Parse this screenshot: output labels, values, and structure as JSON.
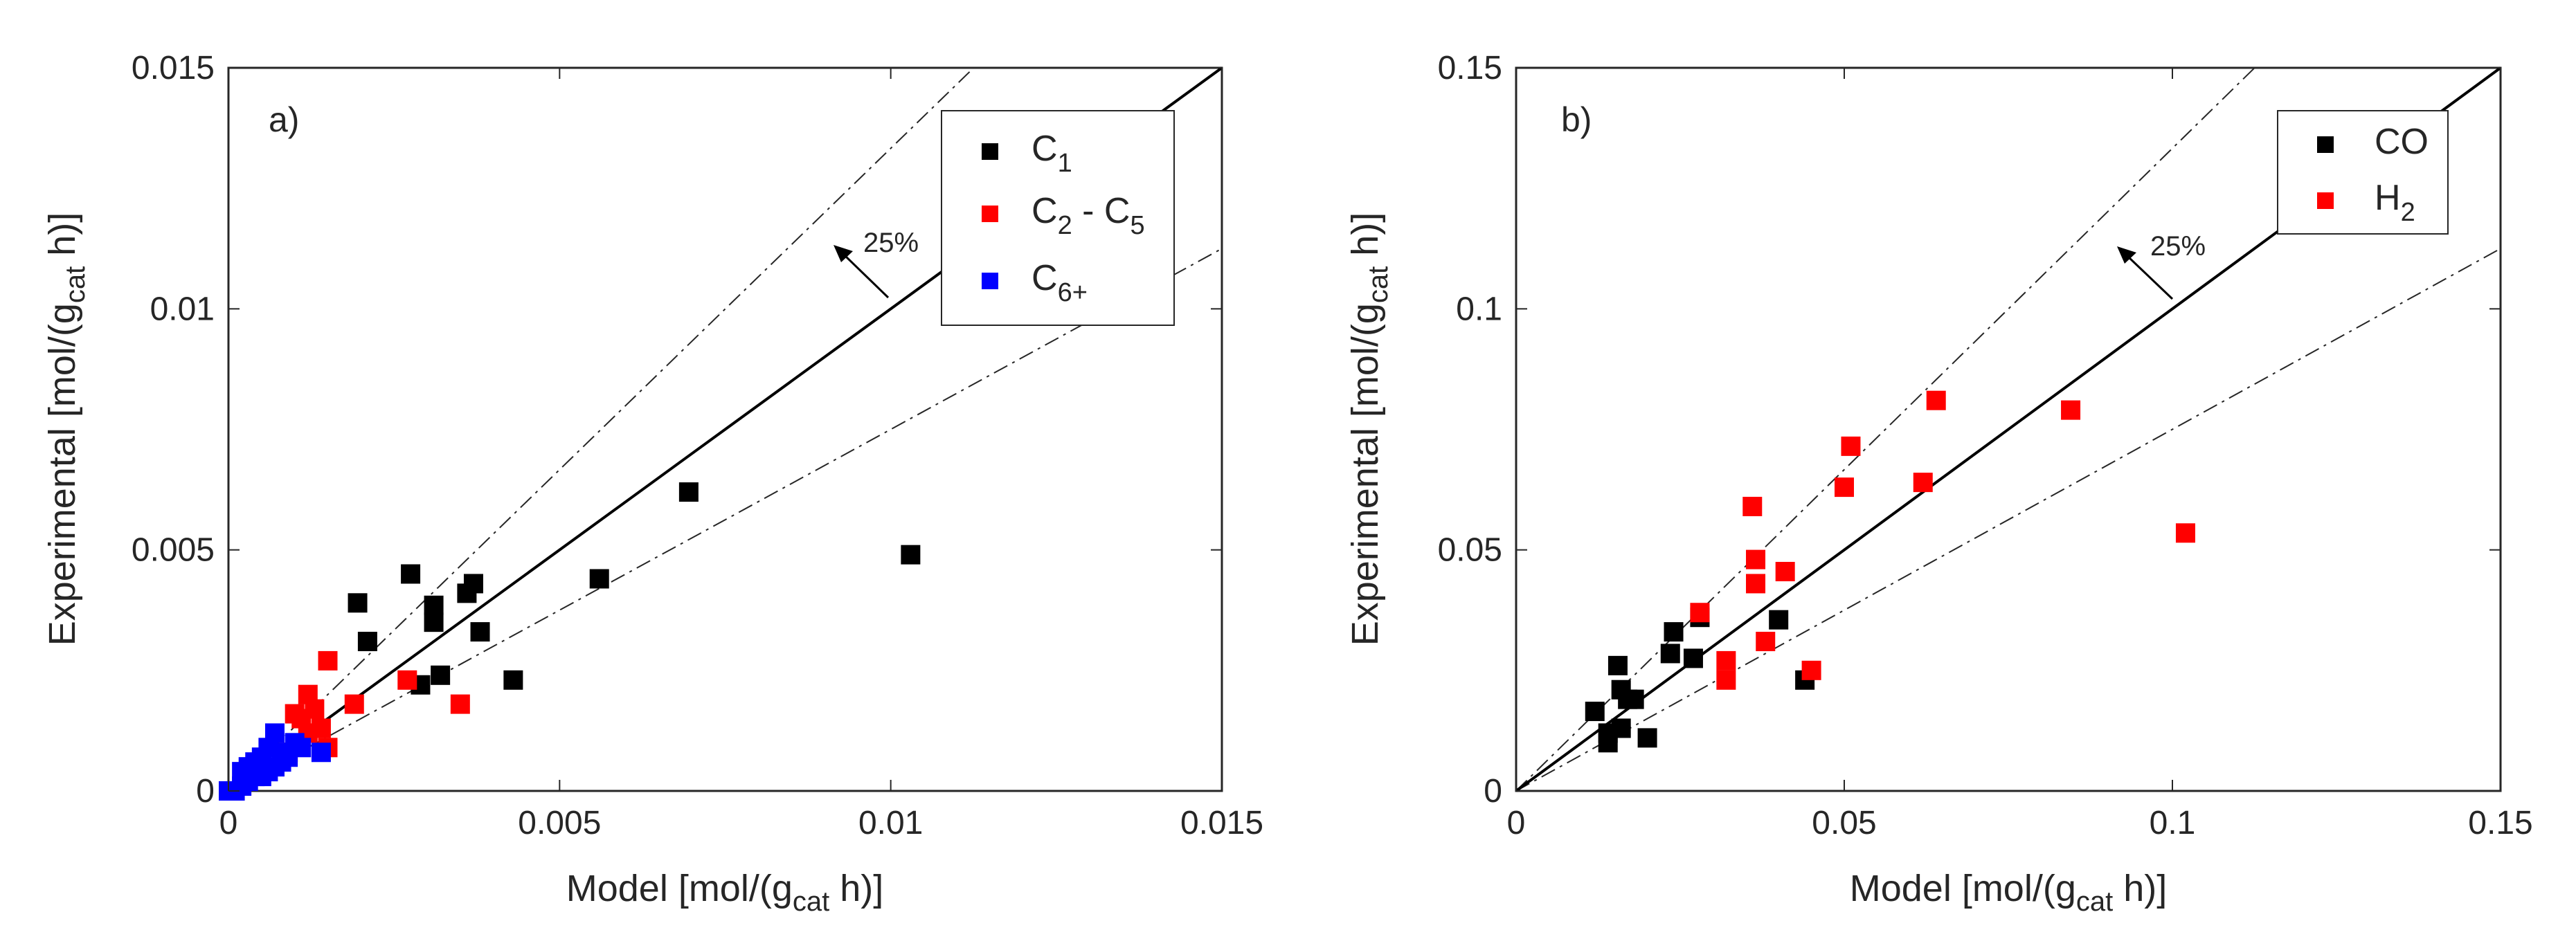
{
  "chart_data": [
    {
      "type": "scatter",
      "panel_label": "a)",
      "xlabel": {
        "main": "Model [mol/(g",
        "sub": "cat",
        "tail": " h)]"
      },
      "ylabel": {
        "main": "Experimental [mol/(g",
        "sub": "cat",
        "tail": " h)]"
      },
      "xlim": [
        0,
        0.015
      ],
      "ylim": [
        0,
        0.015
      ],
      "xticks": [
        0,
        0.005,
        0.01,
        0.015
      ],
      "yticks": [
        0,
        0.005,
        0.01,
        0.015
      ],
      "xtick_labels": [
        "0",
        "0.005",
        "0.01",
        "0.015"
      ],
      "ytick_labels": [
        "0",
        "0.005",
        "0.01",
        "0.015"
      ],
      "grid": false,
      "legend": "top-right",
      "reference_lines": {
        "parity_slope": 1,
        "upper_slope": 1.333,
        "lower_slope": 0.75
      },
      "annotation": {
        "text": "25%",
        "arrow_at_x": 0.0124
      },
      "series": [
        {
          "name": "C1",
          "label_main": "C",
          "label_sub": "1",
          "label_tail": "",
          "color": "#000000",
          "points": [
            [
              0.00275,
              0.0045
            ],
            [
              0.00195,
              0.0039
            ],
            [
              0.0021,
              0.0031
            ],
            [
              0.0031,
              0.00385
            ],
            [
              0.0031,
              0.0035
            ],
            [
              0.0037,
              0.0043
            ],
            [
              0.0036,
              0.0041
            ],
            [
              0.0038,
              0.0033
            ],
            [
              0.0032,
              0.0024
            ],
            [
              0.0029,
              0.0022
            ],
            [
              0.0043,
              0.0023
            ],
            [
              0.0056,
              0.0044
            ],
            [
              0.00695,
              0.0062
            ],
            [
              0.0103,
              0.0049
            ]
          ]
        },
        {
          "name": "C2 - C5",
          "label_main": "C",
          "label_sub": "2",
          "label_tail": " - C",
          "label_sub2": "5",
          "color": "#ff0000",
          "points": [
            [
              0.0012,
              0.002
            ],
            [
              0.0015,
              0.0027
            ],
            [
              0.001,
              0.0016
            ],
            [
              0.0013,
              0.0017
            ],
            [
              0.0014,
              0.0013
            ],
            [
              0.0011,
              0.0015
            ],
            [
              0.0015,
              0.0009
            ],
            [
              0.0019,
              0.0018
            ],
            [
              0.0027,
              0.0023
            ],
            [
              0.0035,
              0.0018
            ],
            [
              0.0012,
              0.0012
            ],
            [
              0.0009,
              0.0008
            ]
          ]
        },
        {
          "name": "C6+",
          "label_main": "C",
          "label_sub": "6+",
          "label_tail": "",
          "color": "#0000ff",
          "points": [
            [
              0,
              0
            ],
            [
              0.0001,
              0
            ],
            [
              0.0002,
              0.0001
            ],
            [
              0.0003,
              0.0002
            ],
            [
              0.0003,
              0.0005
            ],
            [
              0.0004,
              0.0006
            ],
            [
              0.0005,
              0.0007
            ],
            [
              0.0005,
              0.0003
            ],
            [
              0.0006,
              0.0004
            ],
            [
              0.0006,
              0.0009
            ],
            [
              0.0007,
              0.0012
            ],
            [
              0.0007,
              0.0005
            ],
            [
              0.0008,
              0.0008
            ],
            [
              0.0009,
              0.0007
            ],
            [
              0.001,
              0.001
            ],
            [
              0.0011,
              0.0009
            ],
            [
              0.0004,
              0.0003
            ],
            [
              0.0002,
              0.0004
            ],
            [
              0.0014,
              0.0008
            ],
            [
              0.0008,
              0.0006
            ]
          ]
        }
      ]
    },
    {
      "type": "scatter",
      "panel_label": "b)",
      "xlabel": {
        "main": "Model [mol/(g",
        "sub": "cat",
        "tail": " h)]"
      },
      "ylabel": {
        "main": "Experimental [mol/(g",
        "sub": "cat",
        "tail": " h)]"
      },
      "xlim": [
        0,
        0.15
      ],
      "ylim": [
        0,
        0.15
      ],
      "xticks": [
        0,
        0.05,
        0.1,
        0.15
      ],
      "yticks": [
        0,
        0.05,
        0.1,
        0.15
      ],
      "xtick_labels": [
        "0",
        "0.05",
        "0.1",
        "0.15"
      ],
      "ytick_labels": [
        "0",
        "0.05",
        "0.1",
        "0.15"
      ],
      "grid": false,
      "legend": "top-right",
      "reference_lines": {
        "parity_slope": 1,
        "upper_slope": 1.333,
        "lower_slope": 0.75
      },
      "annotation": {
        "text": "25%",
        "arrow_at_x": 0.1
      },
      "series": [
        {
          "name": "CO",
          "label_main": "CO",
          "label_sub": "",
          "label_tail": "",
          "color": "#000000",
          "points": [
            [
              0.012,
              0.0165
            ],
            [
              0.014,
              0.01
            ],
            [
              0.014,
              0.012
            ],
            [
              0.0155,
              0.026
            ],
            [
              0.016,
              0.021
            ],
            [
              0.016,
              0.013
            ],
            [
              0.017,
              0.019
            ],
            [
              0.018,
              0.019
            ],
            [
              0.02,
              0.011
            ],
            [
              0.0235,
              0.0285
            ],
            [
              0.024,
              0.033
            ],
            [
              0.027,
              0.0275
            ],
            [
              0.028,
              0.036
            ],
            [
              0.04,
              0.0355
            ],
            [
              0.044,
              0.023
            ]
          ]
        },
        {
          "name": "H2",
          "label_main": "H",
          "label_sub": "2",
          "label_tail": "",
          "color": "#ff0000",
          "points": [
            [
              0.028,
              0.037
            ],
            [
              0.032,
              0.027
            ],
            [
              0.032,
              0.023
            ],
            [
              0.036,
              0.059
            ],
            [
              0.0365,
              0.048
            ],
            [
              0.0365,
              0.043
            ],
            [
              0.038,
              0.031
            ],
            [
              0.041,
              0.0455
            ],
            [
              0.045,
              0.025
            ],
            [
              0.05,
              0.063
            ],
            [
              0.051,
              0.0715
            ],
            [
              0.062,
              0.064
            ],
            [
              0.064,
              0.081
            ],
            [
              0.0845,
              0.079
            ],
            [
              0.102,
              0.0535
            ]
          ]
        }
      ]
    }
  ]
}
